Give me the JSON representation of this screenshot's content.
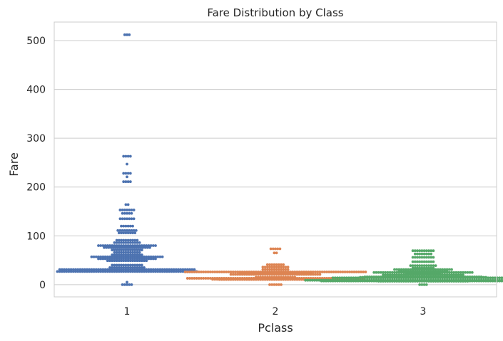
{
  "chart_data": {
    "type": "scatter",
    "subtype": "swarm",
    "title": "Fare Distribution by Class",
    "xlabel": "Pclass",
    "ylabel": "Fare",
    "categories": [
      "1",
      "2",
      "3"
    ],
    "yticks": [
      0,
      100,
      200,
      300,
      400,
      500
    ],
    "ylim": [
      -25,
      538
    ],
    "grid": "horizontal",
    "colors": {
      "1": "#4C72B0",
      "2": "#DD8452",
      "3": "#55A868",
      "grid": "#cccccc",
      "frame": "#cccccc",
      "text": "#262626"
    },
    "series": [
      {
        "category": "1",
        "swarm_bins": [
          [
            512,
            3
          ],
          [
            263,
            4
          ],
          [
            247,
            1
          ],
          [
            228,
            4
          ],
          [
            221,
            1
          ],
          [
            211,
            4
          ],
          [
            164,
            2
          ],
          [
            153,
            7
          ],
          [
            146,
            5
          ],
          [
            135,
            7
          ],
          [
            120,
            6
          ],
          [
            111,
            9
          ],
          [
            106,
            8
          ],
          [
            91,
            10
          ],
          [
            86,
            12
          ],
          [
            80,
            26
          ],
          [
            76,
            21
          ],
          [
            71,
            14
          ],
          [
            66,
            12
          ],
          [
            61,
            14
          ],
          [
            57,
            32
          ],
          [
            53,
            26
          ],
          [
            49,
            18
          ],
          [
            40,
            14
          ],
          [
            35,
            16
          ],
          [
            31,
            60
          ],
          [
            27,
            62
          ],
          [
            5,
            1
          ],
          [
            0,
            5
          ]
        ]
      },
      {
        "category": "2",
        "swarm_bins": [
          [
            73.5,
            5
          ],
          [
            65,
            2
          ],
          [
            41,
            8
          ],
          [
            36,
            12
          ],
          [
            31,
            12
          ],
          [
            26,
            80
          ],
          [
            23,
            32
          ],
          [
            21,
            40
          ],
          [
            15,
            18
          ],
          [
            13,
            78
          ],
          [
            11,
            56
          ],
          [
            10.5,
            50
          ],
          [
            0,
            6
          ]
        ]
      },
      {
        "category": "3",
        "swarm_bins": [
          [
            69.5,
            10
          ],
          [
            63,
            8
          ],
          [
            56,
            10
          ],
          [
            47,
            10
          ],
          [
            39,
            12
          ],
          [
            34,
            10
          ],
          [
            31,
            26
          ],
          [
            27,
            22
          ],
          [
            25,
            44
          ],
          [
            22,
            16
          ],
          [
            20,
            36
          ],
          [
            16,
            52
          ],
          [
            15,
            56
          ],
          [
            14,
            80
          ],
          [
            9,
            104
          ],
          [
            8,
            80
          ],
          [
            7.5,
            90
          ],
          [
            7,
            40
          ],
          [
            0,
            4
          ]
        ]
      }
    ]
  }
}
